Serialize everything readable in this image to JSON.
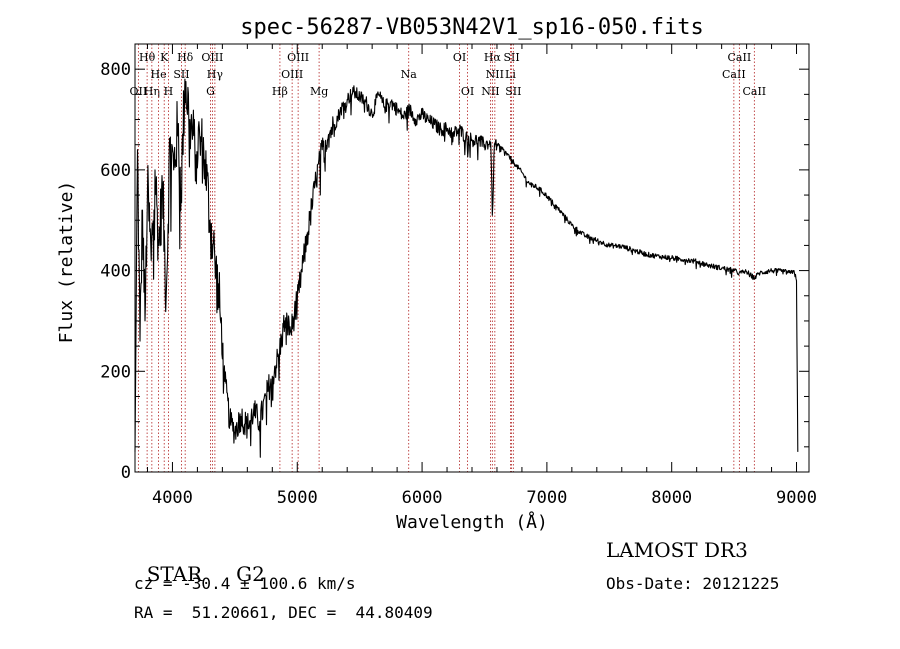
{
  "chart_data": {
    "type": "line",
    "title": "spec-56287-VB053N42V1_sp16-050.fits",
    "xlabel": "Wavelength (Å)",
    "ylabel": "Flux (relative)",
    "xlim": [
      3700,
      9100
    ],
    "ylim": [
      0,
      850
    ],
    "x_ticks": [
      4000,
      5000,
      6000,
      7000,
      8000,
      9000
    ],
    "x_tick_labels": [
      "4000",
      "5000",
      "6000",
      "7000",
      "8000",
      "9000"
    ],
    "y_ticks": [
      0,
      200,
      400,
      600,
      800
    ],
    "y_tick_labels": [
      "0",
      "200",
      "400",
      "600",
      "800"
    ],
    "grid": false,
    "series": [
      {
        "name": "flux",
        "x": [
          3700,
          3720,
          3740,
          3760,
          3780,
          3800,
          3830,
          3860,
          3890,
          3920,
          3950,
          3980,
          4010,
          4040,
          4070,
          4100,
          4140,
          4180,
          4220,
          4260,
          4300,
          4340,
          4380,
          4420,
          4460,
          4500,
          4550,
          4600,
          4650,
          4700,
          4750,
          4800,
          4850,
          4900,
          4950,
          5000,
          5050,
          5100,
          5150,
          5200,
          5250,
          5300,
          5350,
          5400,
          5450,
          5500,
          5550,
          5600,
          5650,
          5700,
          5750,
          5800,
          5850,
          5900,
          5950,
          6000,
          6050,
          6100,
          6150,
          6200,
          6250,
          6300,
          6350,
          6400,
          6450,
          6500,
          6550,
          6563,
          6580,
          6600,
          6650,
          6700,
          6750,
          6800,
          6850,
          6900,
          6950,
          7000,
          7100,
          7200,
          7300,
          7400,
          7500,
          7600,
          7700,
          7800,
          7900,
          8000,
          8100,
          8200,
          8300,
          8400,
          8500,
          8540,
          8600,
          8662,
          8700,
          8800,
          8900,
          8950,
          8980,
          9000,
          9010
        ],
        "y": [
          40,
          640,
          260,
          520,
          300,
          560,
          420,
          600,
          450,
          560,
          350,
          660,
          600,
          680,
          560,
          780,
          700,
          640,
          660,
          620,
          500,
          420,
          320,
          180,
          100,
          80,
          110,
          90,
          120,
          100,
          150,
          190,
          230,
          300,
          280,
          340,
          420,
          500,
          580,
          640,
          670,
          690,
          720,
          740,
          755,
          745,
          735,
          710,
          750,
          725,
          735,
          720,
          705,
          720,
          700,
          710,
          698,
          690,
          680,
          682,
          672,
          680,
          665,
          660,
          658,
          650,
          655,
          510,
          652,
          650,
          640,
          625,
          610,
          595,
          575,
          568,
          560,
          548,
          520,
          490,
          470,
          460,
          450,
          448,
          440,
          432,
          428,
          425,
          422,
          418,
          410,
          405,
          400,
          395,
          398,
          385,
          395,
          400,
          398,
          395,
          400,
          380,
          40
        ]
      }
    ],
    "lines": [
      {
        "name": "Hθ",
        "x": 3797,
        "row": 1
      },
      {
        "name": "OII",
        "x": 3727,
        "row": 3
      },
      {
        "name": "Hη",
        "x": 3835,
        "row": 3
      },
      {
        "name": "He",
        "x": 3889,
        "row": 2
      },
      {
        "name": "K",
        "x": 3934,
        "row": 1
      },
      {
        "name": "H",
        "x": 3968,
        "row": 3
      },
      {
        "name": "SII",
        "x": 4072,
        "row": 2
      },
      {
        "name": "Hδ",
        "x": 4102,
        "row": 1
      },
      {
        "name": "OIII",
        "x": 4320,
        "row": 1
      },
      {
        "name": "Hγ",
        "x": 4340,
        "row": 2
      },
      {
        "name": "G",
        "x": 4305,
        "row": 3
      },
      {
        "name": "Hβ",
        "x": 4861,
        "row": 3
      },
      {
        "name": "OIII",
        "x": 4959,
        "row": 2
      },
      {
        "name": "OIII",
        "x": 5007,
        "row": 1
      },
      {
        "name": "Mg",
        "x": 5175,
        "row": 3
      },
      {
        "name": "Na",
        "x": 5893,
        "row": 2
      },
      {
        "name": "OI",
        "x": 6300,
        "row": 1
      },
      {
        "name": "OI",
        "x": 6364,
        "row": 3
      },
      {
        "name": "NII",
        "x": 6548,
        "row": 3
      },
      {
        "name": "Hα",
        "x": 6563,
        "row": 1
      },
      {
        "name": "NII",
        "x": 6583,
        "row": 2
      },
      {
        "name": "SII",
        "x": 6717,
        "row": 1
      },
      {
        "name": "Li",
        "x": 6708,
        "row": 2
      },
      {
        "name": "SII",
        "x": 6731,
        "row": 3
      },
      {
        "name": "CaII",
        "x": 8498,
        "row": 2
      },
      {
        "name": "CaII",
        "x": 8542,
        "row": 1
      },
      {
        "name": "CaII",
        "x": 8662,
        "row": 3
      }
    ]
  },
  "footer": {
    "class_label": "STAR",
    "subclass": "G2",
    "cz": "cz = -30.4 ± 100.6 km/s",
    "radec": "RA =  51.20661, DEC =  44.80409",
    "survey": "LAMOST DR3",
    "obs_date": "Obs-Date: 20121225"
  },
  "colors": {
    "spectrum": "#000000",
    "line_markers": "#b22222",
    "axes": "#000000",
    "background": "#ffffff"
  }
}
